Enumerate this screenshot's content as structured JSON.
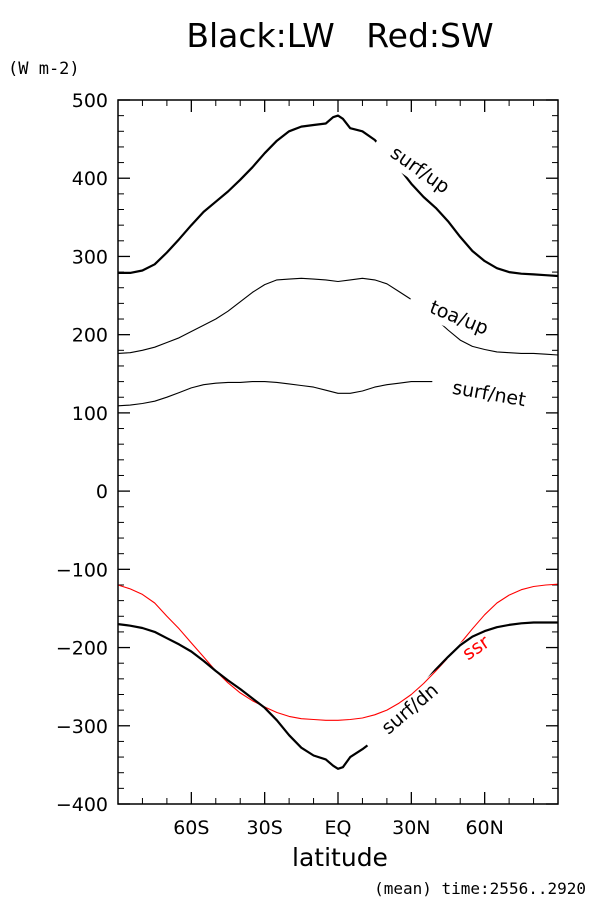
{
  "chart_data": {
    "type": "line",
    "title": "Black:LW   Red:SW",
    "units": "(W m-2)",
    "xlabel": "latitude",
    "footer": "(mean) time:2556..2920",
    "xlim": [
      -90,
      90
    ],
    "ylim": [
      -400,
      500
    ],
    "yticks": [
      -400,
      -300,
      -200,
      -100,
      0,
      100,
      200,
      300,
      400,
      500
    ],
    "ytick_labels": [
      "−400",
      "−300",
      "−200",
      "−100",
      "0",
      "100",
      "200",
      "300",
      "400",
      "500"
    ],
    "xticks": [
      -60,
      -30,
      0,
      30,
      60
    ],
    "xtick_labels": [
      "60S",
      "30S",
      "EQ",
      "30N",
      "60N"
    ],
    "grid": false,
    "series": [
      {
        "name": "surf/up",
        "color": "#000000",
        "weight": "thick",
        "x": [
          -90,
          -85,
          -80,
          -75,
          -70,
          -65,
          -60,
          -55,
          -50,
          -45,
          -40,
          -35,
          -30,
          -25,
          -20,
          -15,
          -10,
          -5,
          -2,
          0,
          2,
          5,
          10,
          15,
          20,
          25,
          30,
          35,
          40,
          45,
          50,
          55,
          60,
          65,
          70,
          75,
          80,
          85,
          90
        ],
        "y": [
          279,
          279,
          282,
          290,
          305,
          322,
          340,
          357,
          370,
          383,
          398,
          414,
          432,
          448,
          460,
          466,
          468,
          470,
          478,
          480,
          476,
          464,
          460,
          449,
          432,
          413,
          393,
          376,
          362,
          345,
          325,
          307,
          294,
          285,
          280,
          278,
          277,
          276,
          275
        ]
      },
      {
        "name": "toa/up",
        "color": "#000000",
        "weight": "thin",
        "x": [
          -90,
          -85,
          -80,
          -75,
          -70,
          -65,
          -60,
          -55,
          -50,
          -45,
          -40,
          -35,
          -30,
          -25,
          -20,
          -15,
          -10,
          -5,
          0,
          5,
          10,
          15,
          20,
          25,
          30,
          35,
          40,
          45,
          50,
          55,
          60,
          65,
          70,
          75,
          80,
          85,
          90
        ],
        "y": [
          176,
          177,
          180,
          184,
          190,
          196,
          204,
          212,
          220,
          230,
          242,
          254,
          264,
          270,
          271,
          272,
          271,
          270,
          268,
          270,
          272,
          270,
          265,
          255,
          245,
          232,
          220,
          206,
          193,
          185,
          181,
          178,
          177,
          176,
          176,
          175,
          174
        ]
      },
      {
        "name": "surf/net",
        "color": "#000000",
        "weight": "thin",
        "x": [
          -90,
          -85,
          -80,
          -75,
          -70,
          -65,
          -60,
          -55,
          -50,
          -45,
          -40,
          -35,
          -30,
          -25,
          -20,
          -15,
          -10,
          -5,
          0,
          5,
          10,
          15,
          20,
          25,
          30,
          35,
          40
        ],
        "y": [
          109,
          110,
          112,
          115,
          120,
          126,
          132,
          136,
          138,
          139,
          139,
          140,
          140,
          139,
          137,
          135,
          133,
          129,
          125,
          125,
          128,
          133,
          136,
          138,
          140,
          140,
          140
        ]
      },
      {
        "name": "ssr",
        "color": "#ff0000",
        "weight": "thin",
        "x": [
          -90,
          -85,
          -80,
          -75,
          -70,
          -65,
          -60,
          -55,
          -50,
          -45,
          -40,
          -35,
          -30,
          -25,
          -20,
          -15,
          -10,
          -5,
          0,
          5,
          10,
          15,
          20,
          25,
          30,
          35,
          40,
          45,
          50,
          55,
          60,
          65,
          70,
          75,
          80,
          85,
          90
        ],
        "y": [
          -120,
          -125,
          -132,
          -143,
          -160,
          -176,
          -194,
          -212,
          -230,
          -245,
          -258,
          -268,
          -276,
          -283,
          -288,
          -291,
          -292,
          -293,
          -293,
          -292,
          -290,
          -286,
          -280,
          -271,
          -260,
          -246,
          -230,
          -213,
          -195,
          -176,
          -158,
          -143,
          -133,
          -126,
          -122,
          -120,
          -119
        ]
      },
      {
        "name": "surf/dn",
        "color": "#000000",
        "weight": "thick",
        "x": [
          -90,
          -85,
          -80,
          -75,
          -70,
          -65,
          -60,
          -55,
          -50,
          -45,
          -40,
          -35,
          -30,
          -25,
          -20,
          -15,
          -10,
          -5,
          -2,
          0,
          2,
          5,
          10,
          15,
          20,
          25,
          30,
          35,
          40,
          45,
          50,
          55,
          60,
          65,
          70,
          75,
          80,
          85,
          90
        ],
        "y": [
          -170,
          -172,
          -175,
          -180,
          -188,
          -196,
          -205,
          -217,
          -230,
          -242,
          -253,
          -265,
          -277,
          -293,
          -312,
          -328,
          -338,
          -343,
          -351,
          -355,
          -353,
          -340,
          -330,
          -318,
          -300,
          -280,
          -263,
          -246,
          -228,
          -212,
          -197,
          -186,
          -179,
          -174,
          -171,
          -169,
          -168,
          -168,
          -168
        ]
      }
    ],
    "annotations": [
      {
        "text": "surf/up",
        "series": "surf/up"
      },
      {
        "text": "toa/up",
        "series": "toa/up"
      },
      {
        "text": "surf/net",
        "series": "surf/net"
      },
      {
        "text": "ssr",
        "series": "ssr"
      },
      {
        "text": "surf/dn",
        "series": "surf/dn"
      }
    ]
  }
}
